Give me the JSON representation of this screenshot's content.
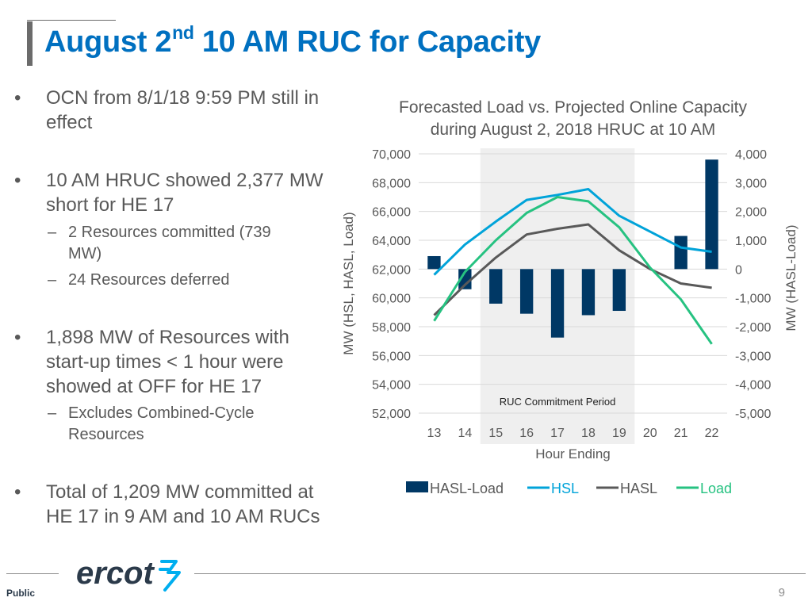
{
  "slide": {
    "title_main": "August 2",
    "title_sup": "nd",
    "title_rest": " 10 AM RUC for Capacity",
    "bullets": [
      {
        "marker": "•",
        "lines": [
          "OCN from 8/1/18 9:59 PM still in",
          "effect"
        ]
      },
      {
        "marker": "•",
        "lines": [
          "10 AM HRUC showed 2,377 MW",
          "short for HE 17"
        ]
      },
      {
        "marker": "–",
        "lines": [
          "2 Resources committed (739",
          "MW)"
        ]
      },
      {
        "marker": "–",
        "lines": [
          "24 Resources deferred"
        ]
      },
      {
        "marker": "•",
        "lines": [
          "1,898 MW of Resources with",
          "start-up times < 1 hour were",
          "showed at OFF for HE 17"
        ]
      },
      {
        "marker": "–",
        "lines": [
          "Excludes Combined-Cycle",
          "Resources"
        ]
      },
      {
        "marker": "•",
        "lines": [
          "Total of 1,209 MW committed at",
          "HE 17 in 9 AM and 10 AM RUCs"
        ]
      }
    ],
    "footer_label": "Public",
    "page_number": "9",
    "logo_text": "ercot"
  },
  "colors": {
    "title": "#0070c0",
    "hasl_load": "#003865",
    "hsl": "#00a3d9",
    "hasl": "#595959",
    "load": "#26c281",
    "shade": "#efefef"
  },
  "chart_data": {
    "type": "bar+line",
    "title_lines": [
      "Forecasted Load vs. Projected Online Capacity",
      "during August 2, 2018 HRUC at 10 AM"
    ],
    "xlabel": "Hour Ending",
    "ylabel_left": "MW (HSL, HASL, Load)",
    "ylabel_right": "MW (HASL-Load)",
    "x": [
      13,
      14,
      15,
      16,
      17,
      18,
      19,
      20,
      21,
      22
    ],
    "ylim_left": [
      52000,
      70000
    ],
    "ylim_right": [
      -5000,
      4000
    ],
    "yticks_left": [
      "52,000",
      "54,000",
      "56,000",
      "58,000",
      "60,000",
      "62,000",
      "64,000",
      "66,000",
      "68,000",
      "70,000"
    ],
    "yticks_right": [
      "-5,000",
      "-4,000",
      "-3,000",
      "-2,000",
      "-1,000",
      "0",
      "1,000",
      "2,000",
      "3,000",
      "4,000"
    ],
    "shaded_region": {
      "from": 15,
      "to": 19,
      "label": "RUC Commitment Period"
    },
    "series": [
      {
        "name": "HASL-Load",
        "kind": "bar",
        "axis": "right",
        "values": [
          450,
          -700,
          -1200,
          -1550,
          -2377,
          -1600,
          -1450,
          0,
          1150,
          3800
        ]
      },
      {
        "name": "HSL",
        "kind": "line",
        "axis": "left",
        "values": [
          61600,
          63700,
          65300,
          66800,
          67150,
          67550,
          65700,
          64600,
          63500,
          63200
        ]
      },
      {
        "name": "HASL",
        "kind": "line",
        "axis": "left",
        "values": [
          58800,
          60900,
          62800,
          64400,
          64800,
          65100,
          63300,
          62000,
          61000,
          60700
        ]
      },
      {
        "name": "Load",
        "kind": "line",
        "axis": "left",
        "values": [
          58400,
          61800,
          64000,
          65900,
          67000,
          66700,
          64900,
          62100,
          59900,
          56800
        ]
      }
    ],
    "legend_position": "bottom"
  }
}
